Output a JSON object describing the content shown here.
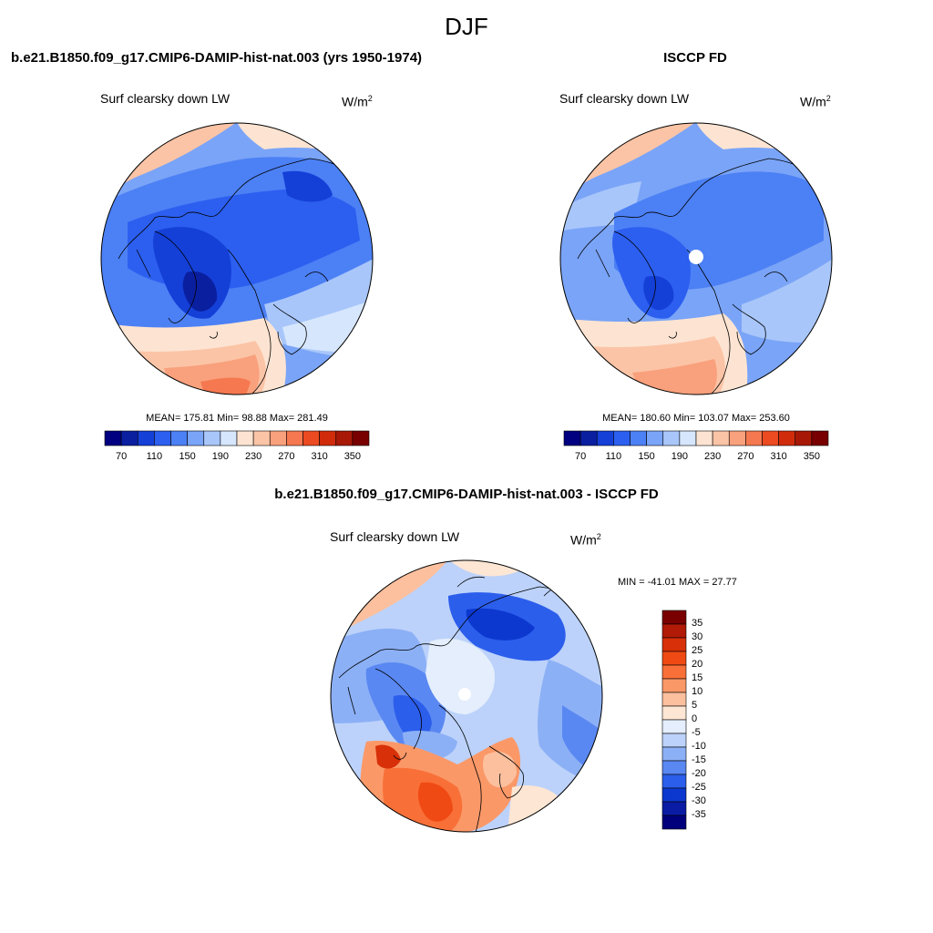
{
  "figure_title": "DJF",
  "panels": [
    {
      "title": "b.e21.B1850.f09_g17.CMIP6-DAMIP-hist-nat.003 (yrs 1950-1974)",
      "left_label": "Surf clearsky down LW",
      "units": "W/m",
      "units_sup": "2",
      "stats": "MEAN= 175.81  Min=  98.88  Max= 281.49",
      "colorbar": {
        "labels": [
          "70",
          "110",
          "150",
          "190",
          "230",
          "270",
          "310",
          "350"
        ],
        "colors": [
          "#000080",
          "#0a1fa0",
          "#1440d8",
          "#2c5ff0",
          "#4c80f5",
          "#7aa4f7",
          "#a8c6fa",
          "#d6e6fc",
          "#fde4d2",
          "#fbc4a6",
          "#f9a07c",
          "#f57850",
          "#ec4a20",
          "#d02c0c",
          "#a81806",
          "#780000"
        ]
      }
    },
    {
      "title": "ISCCP FD",
      "left_label": "Surf clearsky down LW",
      "units": "W/m",
      "units_sup": "2",
      "stats": "MEAN= 180.60  Min= 103.07  Max= 253.60",
      "colorbar": {
        "labels": [
          "70",
          "110",
          "150",
          "190",
          "230",
          "270",
          "310",
          "350"
        ],
        "colors": [
          "#000080",
          "#0a1fa0",
          "#1440d8",
          "#2c5ff0",
          "#4c80f5",
          "#7aa4f7",
          "#a8c6fa",
          "#d6e6fc",
          "#fde4d2",
          "#fbc4a6",
          "#f9a07c",
          "#f57850",
          "#ec4a20",
          "#d02c0c",
          "#a81806",
          "#780000"
        ]
      }
    },
    {
      "title": "b.e21.B1850.f09_g17.CMIP6-DAMIP-hist-nat.003 - ISCCP FD",
      "left_label": "Surf clearsky down LW",
      "units": "W/m",
      "units_sup": "2",
      "stats": "MIN = -41.01 MAX =  27.77",
      "colorbar": {
        "labels": [
          "35",
          "30",
          "25",
          "20",
          "15",
          "10",
          "5",
          "0",
          "-5",
          "-10",
          "-15",
          "-20",
          "-25",
          "-30",
          "-35"
        ],
        "colors": [
          "#7a0000",
          "#b01a06",
          "#d83008",
          "#f04a14",
          "#f87038",
          "#fb9868",
          "#fcc09e",
          "#fde6d4",
          "#e4eefc",
          "#bcd2fa",
          "#8cb0f6",
          "#5a88f2",
          "#2c5eec",
          "#0c38d0",
          "#0a1ca4",
          "#00007c"
        ]
      }
    }
  ]
}
